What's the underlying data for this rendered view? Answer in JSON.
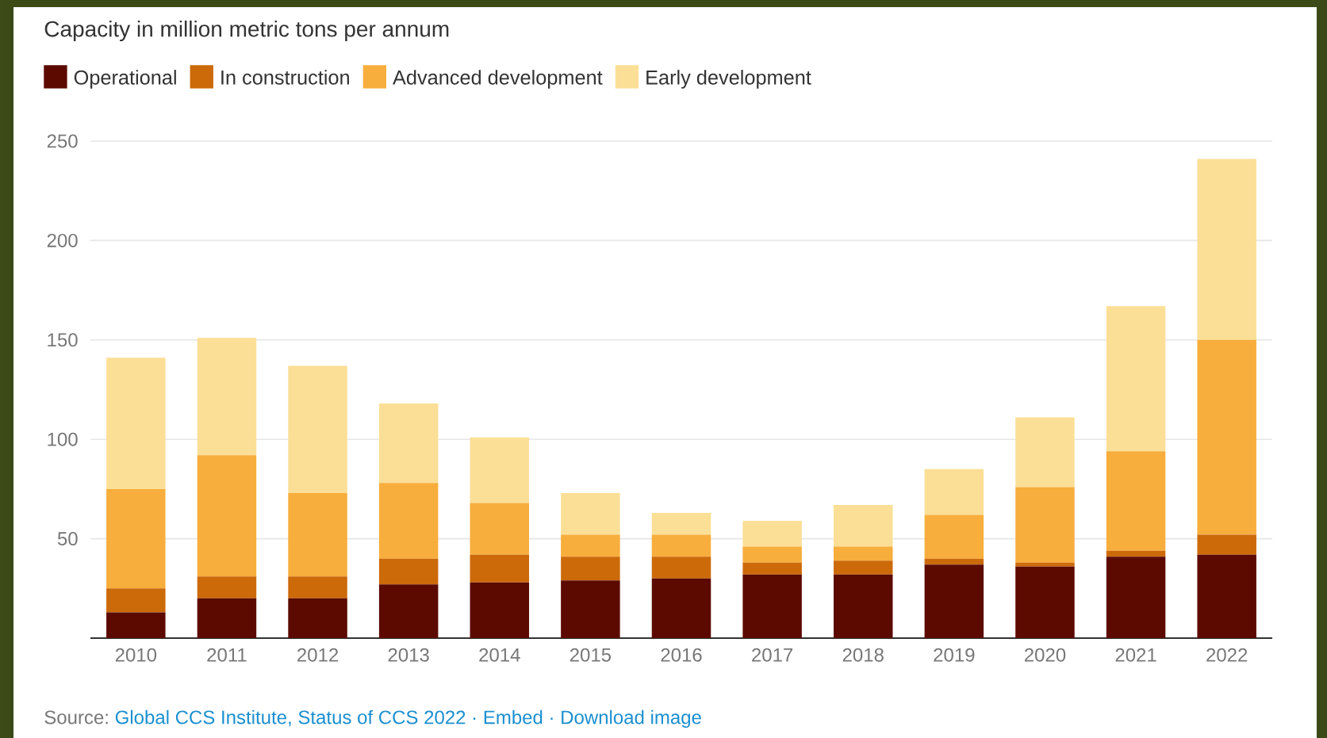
{
  "chart_data": {
    "type": "bar",
    "title": "Capacity in million metric tons per annum",
    "categories": [
      "2010",
      "2011",
      "2012",
      "2013",
      "2014",
      "2015",
      "2016",
      "2017",
      "2018",
      "2019",
      "2020",
      "2021",
      "2022"
    ],
    "series": [
      {
        "name": "Operational",
        "color": "#5c0a00",
        "values": [
          13,
          20,
          20,
          27,
          28,
          29,
          30,
          32,
          32,
          37,
          36,
          41,
          42
        ]
      },
      {
        "name": "In construction",
        "color": "#cc6a0a",
        "values": [
          12,
          11,
          11,
          13,
          14,
          12,
          11,
          6,
          7,
          3,
          2,
          3,
          10
        ]
      },
      {
        "name": "Advanced development",
        "color": "#f7ae3c",
        "values": [
          50,
          61,
          42,
          38,
          26,
          11,
          11,
          8,
          7,
          22,
          38,
          50,
          98
        ]
      },
      {
        "name": "Early development",
        "color": "#fcdf96",
        "values": [
          66,
          59,
          64,
          40,
          33,
          21,
          11,
          13,
          21,
          23,
          35,
          73,
          91
        ]
      }
    ],
    "stacked": true,
    "ylim": [
      0,
      250
    ],
    "yticks": [
      50,
      100,
      150,
      200,
      250
    ],
    "grid": "y",
    "legend": "top left",
    "annotations": [
      "Source:",
      "Global CCS Institute, Status of CCS 2022 · Embed · Download image"
    ]
  }
}
